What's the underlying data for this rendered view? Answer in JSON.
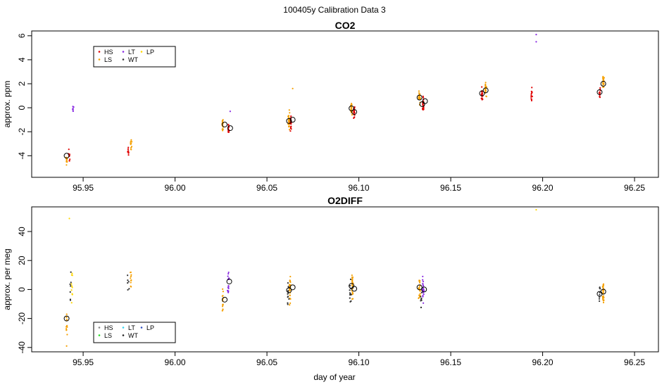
{
  "figure_title": "100405y   Calibration Data 3",
  "xlabel": "day of year",
  "colors": {
    "HS": "#e00000",
    "LS": "#f5a000",
    "LT": "#8a2be2",
    "WT": "#333333",
    "LP": "#ffd700",
    "o2_LS": "#22dd22",
    "o2_LT": "#33d4f0",
    "o2_WT": "#222222",
    "o2_LP": "#3050c0",
    "o2_HS": "#888888"
  },
  "chart_data": [
    {
      "type": "scatter",
      "title": "CO2",
      "xlabel": "",
      "ylabel": "approx. ppm",
      "xlim": [
        95.922,
        96.263
      ],
      "ylim": [
        -5.8,
        6.4
      ],
      "xticks": [
        "95.95",
        "96.00",
        "96.05",
        "96.10",
        "96.15",
        "96.20",
        "96.25"
      ],
      "xtick_values": [
        95.95,
        96.0,
        96.05,
        96.1,
        96.15,
        96.2,
        96.25
      ],
      "yticks": [
        "-4",
        "-2",
        "0",
        "2",
        "4",
        "6"
      ],
      "ytick_values": [
        -4,
        -2,
        0,
        2,
        4,
        6
      ],
      "legend": {
        "placement": "top-left",
        "entries": [
          {
            "label": "HS",
            "color_key": "HS"
          },
          {
            "label": "LS",
            "color_key": "LS"
          },
          {
            "label": "LT",
            "color_key": "LT"
          },
          {
            "label": "WT",
            "color_key": "WT"
          },
          {
            "label": "LP",
            "color_key": "LP"
          }
        ]
      },
      "clusters": [
        {
          "series": "LS",
          "x": 95.941,
          "center": -4.4,
          "spread": 0.45,
          "n": 12
        },
        {
          "series": "HS",
          "x": 95.9425,
          "center": -4.1,
          "spread": 0.55,
          "n": 9
        },
        {
          "series": "LT",
          "x": 95.9445,
          "center": -0.2,
          "spread": 0.45,
          "n": 8
        },
        {
          "series": "HS",
          "x": 95.9745,
          "center": -3.6,
          "spread": 0.5,
          "n": 8
        },
        {
          "series": "LS",
          "x": 95.976,
          "center": -3.0,
          "spread": 0.45,
          "n": 10
        },
        {
          "series": "LS",
          "x": 96.026,
          "center": -1.5,
          "spread": 0.45,
          "n": 20
        },
        {
          "series": "HS",
          "x": 96.029,
          "center": -1.8,
          "spread": 0.45,
          "n": 16
        },
        {
          "series": "LS",
          "x": 96.062,
          "center": -1.0,
          "spread": 0.65,
          "n": 30
        },
        {
          "series": "HS",
          "x": 96.063,
          "center": -1.3,
          "spread": 0.55,
          "n": 22
        },
        {
          "series": "LS",
          "x": 96.096,
          "center": -0.1,
          "spread": 0.45,
          "n": 26
        },
        {
          "series": "HS",
          "x": 96.0975,
          "center": -0.5,
          "spread": 0.45,
          "n": 18
        },
        {
          "series": "LS",
          "x": 96.133,
          "center": 0.8,
          "spread": 0.45,
          "n": 24
        },
        {
          "series": "HS",
          "x": 96.135,
          "center": 0.3,
          "spread": 0.6,
          "n": 24
        },
        {
          "series": "HS",
          "x": 96.167,
          "center": 1.1,
          "spread": 0.55,
          "n": 24
        },
        {
          "series": "LS",
          "x": 96.169,
          "center": 1.5,
          "spread": 0.55,
          "n": 24
        },
        {
          "series": "HS",
          "x": 96.194,
          "center": 1.1,
          "spread": 0.55,
          "n": 12
        },
        {
          "series": "HS",
          "x": 96.231,
          "center": 1.2,
          "spread": 0.5,
          "n": 14
        },
        {
          "series": "LS",
          "x": 96.233,
          "center": 2.1,
          "spread": 0.5,
          "n": 24
        }
      ],
      "outliers": [
        {
          "series": "LT",
          "x": 96.1965,
          "y": 6.1
        },
        {
          "series": "LT",
          "x": 96.1965,
          "y": 5.5
        },
        {
          "series": "LS",
          "x": 96.064,
          "y": 1.6
        },
        {
          "series": "LT",
          "x": 96.03,
          "y": -0.3
        }
      ],
      "means": [
        {
          "x": 95.941,
          "y": -4.0
        },
        {
          "x": 96.027,
          "y": -1.4
        },
        {
          "x": 96.03,
          "y": -1.7
        },
        {
          "x": 96.062,
          "y": -1.1
        },
        {
          "x": 96.064,
          "y": -1.0
        },
        {
          "x": 96.096,
          "y": -0.05
        },
        {
          "x": 96.0975,
          "y": -0.35
        },
        {
          "x": 96.133,
          "y": 0.85
        },
        {
          "x": 96.1345,
          "y": 0.3
        },
        {
          "x": 96.136,
          "y": 0.55
        },
        {
          "x": 96.167,
          "y": 1.2
        },
        {
          "x": 96.169,
          "y": 1.45
        },
        {
          "x": 96.231,
          "y": 1.3
        },
        {
          "x": 96.233,
          "y": 2.0
        }
      ]
    },
    {
      "type": "scatter",
      "title": "O2DIFF",
      "xlabel": "day of year",
      "ylabel": "approx. per meg",
      "xlim": [
        95.922,
        96.263
      ],
      "ylim": [
        -43,
        57
      ],
      "xticks": [
        "95.95",
        "96.00",
        "96.05",
        "96.10",
        "96.15",
        "96.20",
        "96.25"
      ],
      "xtick_values": [
        95.95,
        96.0,
        96.05,
        96.1,
        96.15,
        96.2,
        96.25
      ],
      "yticks": [
        "-40",
        "-20",
        "0",
        "20",
        "40"
      ],
      "ytick_values": [
        -40,
        -20,
        0,
        20,
        40
      ],
      "legend": {
        "placement": "bottom-left",
        "entries": [
          {
            "label": "HS",
            "color_key": "o2_HS"
          },
          {
            "label": "LS",
            "color_key": "o2_LS"
          },
          {
            "label": "LT",
            "color_key": "o2_LT"
          },
          {
            "label": "WT",
            "color_key": "o2_WT"
          },
          {
            "label": "LP",
            "color_key": "o2_LP"
          }
        ]
      },
      "clusters": [
        {
          "series": "LS",
          "x": 95.941,
          "center": -25,
          "spread": 12,
          "n": 14
        },
        {
          "series": "WT",
          "x": 95.943,
          "center": 0,
          "spread": 15,
          "n": 8
        },
        {
          "series": "LP",
          "x": 95.944,
          "center": 0,
          "spread": 14,
          "n": 10
        },
        {
          "series": "WT",
          "x": 95.9745,
          "center": 3,
          "spread": 10,
          "n": 6
        },
        {
          "series": "LS",
          "x": 95.976,
          "center": 6,
          "spread": 9,
          "n": 10
        },
        {
          "series": "LS",
          "x": 96.026,
          "center": -7,
          "spread": 8,
          "n": 14
        },
        {
          "series": "LT",
          "x": 96.029,
          "center": 4,
          "spread": 8,
          "n": 16
        },
        {
          "series": "LS",
          "x": 96.0625,
          "center": 0,
          "spread": 9,
          "n": 30
        },
        {
          "series": "WT",
          "x": 96.0615,
          "center": -2,
          "spread": 9,
          "n": 12
        },
        {
          "series": "LS",
          "x": 96.0965,
          "center": 2,
          "spread": 10,
          "n": 30
        },
        {
          "series": "WT",
          "x": 96.0955,
          "center": 0,
          "spread": 10,
          "n": 12
        },
        {
          "series": "LS",
          "x": 96.133,
          "center": 0,
          "spread": 9,
          "n": 24
        },
        {
          "series": "LT",
          "x": 96.135,
          "center": 0,
          "spread": 10,
          "n": 20
        },
        {
          "series": "WT",
          "x": 96.134,
          "center": -6,
          "spread": 10,
          "n": 8
        },
        {
          "series": "LS",
          "x": 96.233,
          "center": -2,
          "spread": 9,
          "n": 28
        },
        {
          "series": "WT",
          "x": 96.231,
          "center": -4,
          "spread": 8,
          "n": 8
        }
      ],
      "outliers": [
        {
          "series": "LP",
          "x": 95.9425,
          "y": 49
        },
        {
          "series": "LP",
          "x": 96.1965,
          "y": 55
        },
        {
          "series": "LS",
          "x": 95.941,
          "y": -39
        }
      ],
      "means": [
        {
          "x": 95.941,
          "y": -20
        },
        {
          "x": 96.027,
          "y": -7
        },
        {
          "x": 96.0295,
          "y": 5.5
        },
        {
          "x": 96.062,
          "y": -0.5
        },
        {
          "x": 96.064,
          "y": 1.5
        },
        {
          "x": 96.096,
          "y": 2.5
        },
        {
          "x": 96.0975,
          "y": 0.5
        },
        {
          "x": 96.133,
          "y": 1.5
        },
        {
          "x": 96.1355,
          "y": 0
        },
        {
          "x": 96.231,
          "y": -3
        },
        {
          "x": 96.233,
          "y": -1.5
        }
      ]
    }
  ]
}
